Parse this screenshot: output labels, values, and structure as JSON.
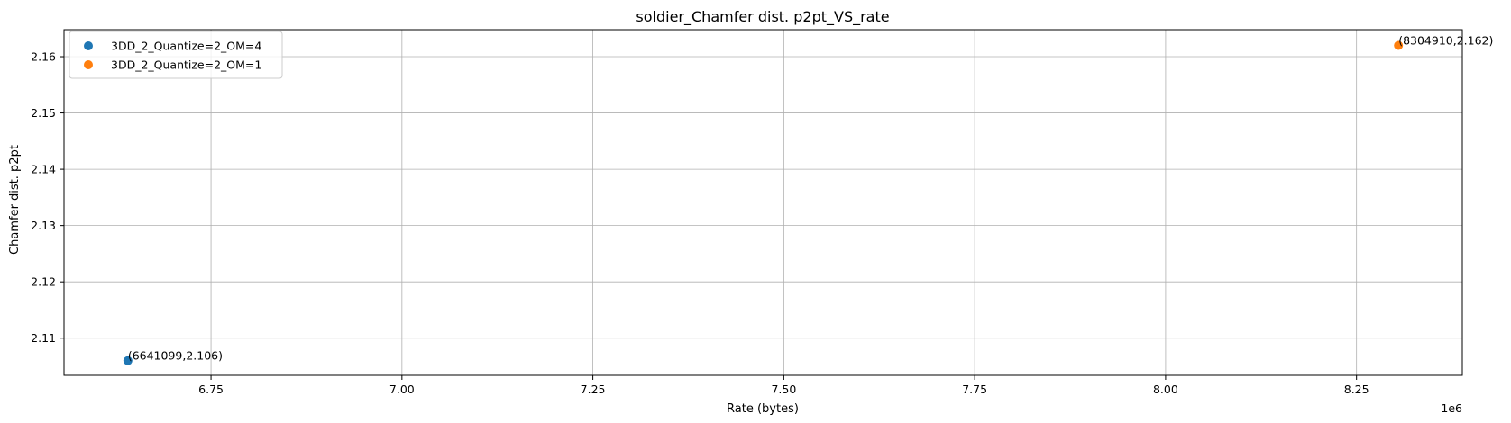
{
  "chart_data": {
    "type": "scatter",
    "title": "soldier_Chamfer dist. p2pt_VS_rate",
    "xlabel": "Rate (bytes)",
    "ylabel": "Chamfer dist. p2pt",
    "x_offset_label": "1e6",
    "xlim": [
      6.5575,
      8.3885
    ],
    "ylim": [
      2.1034,
      2.1648
    ],
    "xticks": [
      6.75,
      7.0,
      7.25,
      7.5,
      7.75,
      8.0,
      8.25
    ],
    "xtick_labels": [
      "6.75",
      "7.00",
      "7.25",
      "7.50",
      "7.75",
      "8.00",
      "8.25"
    ],
    "yticks": [
      2.11,
      2.12,
      2.13,
      2.14,
      2.15,
      2.16
    ],
    "ytick_labels": [
      "2.11",
      "2.12",
      "2.13",
      "2.14",
      "2.15",
      "2.16"
    ],
    "grid": true,
    "legend_position": "top-left",
    "series": [
      {
        "name": "3DD_2_Quantize=2_OM=4",
        "color": "#1f77b4",
        "points": [
          {
            "x": 6.641099,
            "y": 2.106,
            "label": "(6641099,2.106)"
          }
        ]
      },
      {
        "name": "3DD_2_Quantize=2_OM=1",
        "color": "#ff7f0e",
        "points": [
          {
            "x": 8.30491,
            "y": 2.162,
            "label": "(8304910,2.162)"
          }
        ]
      }
    ]
  }
}
